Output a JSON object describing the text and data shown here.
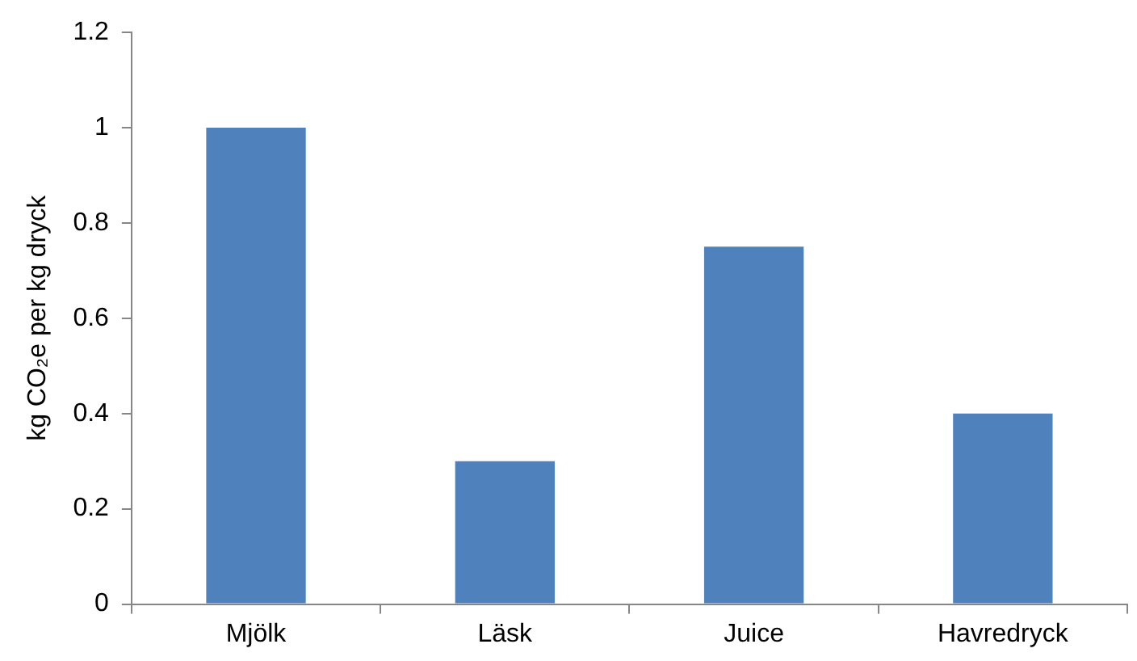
{
  "chart_data": {
    "type": "bar",
    "ylabel": "kg CO₂e per kg dryck",
    "categories": [
      "Mjölk",
      "Läsk",
      "Juice",
      "Havredryck"
    ],
    "values": [
      1.0,
      0.3,
      0.75,
      0.4
    ],
    "color": "#4f81bd",
    "ylim": [
      0,
      1.2
    ],
    "yticks": [
      0,
      0.2,
      0.4,
      0.6,
      0.8,
      1,
      1.2
    ],
    "grid": false,
    "legend": false
  }
}
